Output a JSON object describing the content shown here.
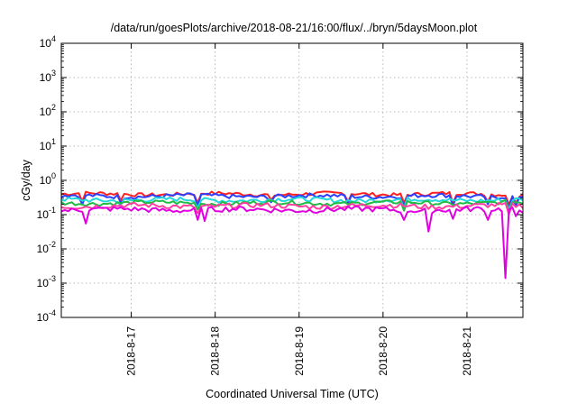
{
  "chart_data": {
    "type": "line",
    "title": "/data/run/goesPlots/archive/2018-08-21/16:00/flux/../bryn/5daysMoon.plot",
    "xlabel": "Coordinated Universal Time (UTC)",
    "ylabel": "cGy/day",
    "yscale": "log",
    "ylim": [
      0.0001,
      10000
    ],
    "xlim": [
      "2018-08-16T04:00",
      "2018-08-21T16:00"
    ],
    "y_ticks": [
      {
        "value": 10000,
        "base": "10",
        "exp": "4"
      },
      {
        "value": 1000,
        "base": "10",
        "exp": "3"
      },
      {
        "value": 100,
        "base": "10",
        "exp": "2"
      },
      {
        "value": 10,
        "base": "10",
        "exp": "1"
      },
      {
        "value": 1,
        "base": "10",
        "exp": "0"
      },
      {
        "value": 0.1,
        "base": "10",
        "exp": "-1"
      },
      {
        "value": 0.01,
        "base": "10",
        "exp": "-2"
      },
      {
        "value": 0.001,
        "base": "10",
        "exp": "-3"
      },
      {
        "value": 0.0001,
        "base": "10",
        "exp": "-4"
      }
    ],
    "x_ticks": [
      {
        "value": "2018-08-17T00:00",
        "label": "2018-8-17"
      },
      {
        "value": "2018-08-18T00:00",
        "label": "2018-8-18"
      },
      {
        "value": "2018-08-19T00:00",
        "label": "2018-8-19"
      },
      {
        "value": "2018-08-20T00:00",
        "label": "2018-8-20"
      },
      {
        "value": "2018-08-21T00:00",
        "label": "2018-8-21"
      }
    ],
    "grid": true,
    "legend": "none",
    "series": [
      {
        "color": "#ff2020",
        "base": 0.4,
        "noise": 0.05,
        "dips": [
          {
            "t": "2018-08-16T10:00",
            "v": 0.24
          },
          {
            "t": "2018-08-16T21:00",
            "v": 0.26
          },
          {
            "t": "2018-08-17T19:00",
            "v": 0.22
          },
          {
            "t": "2018-08-18T16:00",
            "v": 0.27
          },
          {
            "t": "2018-08-19T14:00",
            "v": 0.24
          },
          {
            "t": "2018-08-20T06:00",
            "v": 0.22
          },
          {
            "t": "2018-08-20T20:00",
            "v": 0.22
          },
          {
            "t": "2018-08-21T06:00",
            "v": 0.24
          },
          {
            "t": "2018-08-21T12:00",
            "v": 0.2
          },
          {
            "t": "2018-08-21T14:00",
            "v": 0.22
          }
        ]
      },
      {
        "color": "#2a3fff",
        "base": 0.35,
        "noise": 0.05,
        "dips": [
          {
            "t": "2018-08-16T10:00",
            "v": 0.2
          },
          {
            "t": "2018-08-16T21:00",
            "v": 0.22
          },
          {
            "t": "2018-08-17T19:00",
            "v": 0.18
          },
          {
            "t": "2018-08-18T16:00",
            "v": 0.23
          },
          {
            "t": "2018-08-19T14:00",
            "v": 0.2
          },
          {
            "t": "2018-08-20T06:00",
            "v": 0.18
          },
          {
            "t": "2018-08-20T20:00",
            "v": 0.18
          },
          {
            "t": "2018-08-21T06:00",
            "v": 0.2
          },
          {
            "t": "2018-08-21T12:00",
            "v": 0.16
          },
          {
            "t": "2018-08-21T14:00",
            "v": 0.18
          }
        ]
      },
      {
        "color": "#22d8d8",
        "base": 0.27,
        "noise": 0.04,
        "dips": [
          {
            "t": "2018-08-16T21:00",
            "v": 0.19
          },
          {
            "t": "2018-08-17T19:00",
            "v": 0.16
          },
          {
            "t": "2018-08-20T06:00",
            "v": 0.15
          },
          {
            "t": "2018-08-21T12:00",
            "v": 0.14
          }
        ]
      },
      {
        "color": "#22bb44",
        "base": 0.22,
        "noise": 0.03,
        "dips": [
          {
            "t": "2018-08-17T19:00",
            "v": 0.14
          },
          {
            "t": "2018-08-20T06:00",
            "v": 0.13
          },
          {
            "t": "2018-08-21T12:00",
            "v": 0.12
          }
        ]
      },
      {
        "color": "#ff3fa0",
        "base": 0.18,
        "noise": 0.03,
        "dips": [
          {
            "t": "2018-08-17T19:00",
            "v": 0.11
          },
          {
            "t": "2018-08-21T12:00",
            "v": 0.1
          }
        ]
      },
      {
        "color": "#e000e0",
        "base": 0.14,
        "noise": 0.025,
        "dips": [
          {
            "t": "2018-08-16T11:00",
            "v": 0.055
          },
          {
            "t": "2018-08-17T19:00",
            "v": 0.07
          },
          {
            "t": "2018-08-17T21:00",
            "v": 0.065
          },
          {
            "t": "2018-08-20T06:00",
            "v": 0.07
          },
          {
            "t": "2018-08-20T13:00",
            "v": 0.032
          },
          {
            "t": "2018-08-20T20:00",
            "v": 0.075
          },
          {
            "t": "2018-08-21T06:00",
            "v": 0.07
          },
          {
            "t": "2018-08-21T11:00",
            "v": 0.0014
          },
          {
            "t": "2018-08-21T14:00",
            "v": 0.09
          }
        ]
      }
    ]
  }
}
